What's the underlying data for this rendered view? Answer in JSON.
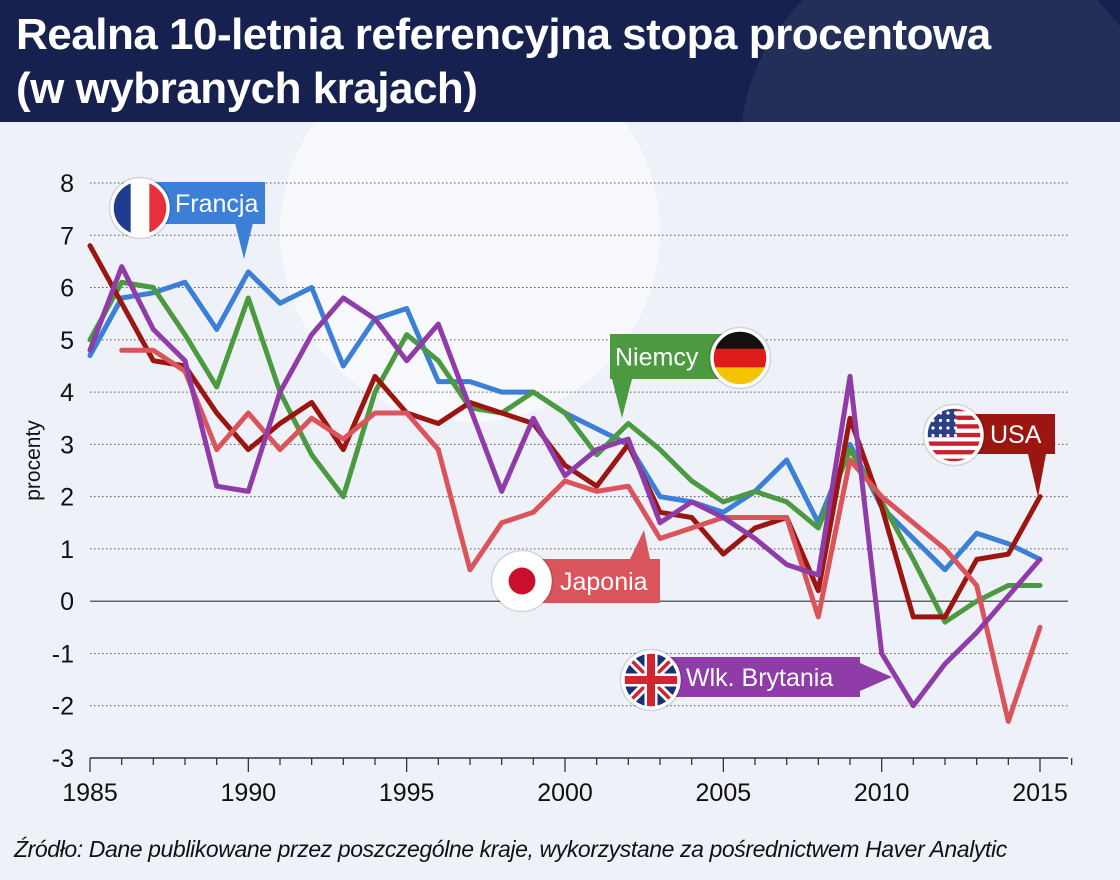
{
  "title_line1": "Realna 10-letnia referencyjna stopa procentowa",
  "title_line2": "(w wybranych krajach)",
  "source": "Źródło: Dane publikowane przez poszczególne kraje, wykorzystane za pośrednictwem Haver Analytic",
  "chart_data": {
    "type": "line",
    "ylabel": "procenty",
    "xlim": [
      1985,
      2016
    ],
    "ylim": [
      -3,
      8
    ],
    "grid": true,
    "xticks": [
      1985,
      1990,
      1995,
      2000,
      2005,
      2010,
      2015
    ],
    "yticks": [
      8,
      7,
      6,
      5,
      4,
      3,
      2,
      1,
      0,
      -1,
      -2,
      -3
    ],
    "x": [
      1985,
      1986,
      1987,
      1988,
      1989,
      1990,
      1991,
      1992,
      1993,
      1994,
      1995,
      1996,
      1997,
      1998,
      1999,
      2000,
      2001,
      2002,
      2003,
      2004,
      2005,
      2006,
      2007,
      2008,
      2009,
      2010,
      2011,
      2012,
      2013,
      2014,
      2015
    ],
    "series": [
      {
        "name": "Francja",
        "color": "#3b7fd6",
        "labelPos": "top-left",
        "flag": "france",
        "values": [
          4.7,
          5.8,
          5.9,
          6.1,
          5.2,
          6.3,
          5.7,
          6.0,
          4.5,
          5.4,
          5.6,
          4.2,
          4.2,
          4.0,
          4.0,
          3.6,
          3.3,
          3.0,
          2.0,
          1.9,
          1.7,
          2.1,
          2.7,
          1.5,
          3.0,
          1.8,
          1.2,
          0.6,
          1.3,
          1.1,
          0.8
        ]
      },
      {
        "name": "Niemcy",
        "color": "#4b9a3f",
        "labelPos": "mid",
        "flag": "germany",
        "values": [
          5.0,
          6.1,
          6.0,
          5.1,
          4.1,
          5.8,
          4.0,
          2.8,
          2.0,
          4.0,
          5.1,
          4.6,
          3.7,
          3.6,
          4.0,
          3.6,
          2.8,
          3.4,
          2.9,
          2.3,
          1.9,
          2.1,
          1.9,
          1.4,
          2.9,
          1.9,
          0.8,
          -0.4,
          0.0,
          0.3,
          0.3
        ]
      },
      {
        "name": "USA",
        "color": "#9b1611",
        "labelPos": "right",
        "flag": "usa",
        "values": [
          6.8,
          5.7,
          4.6,
          4.5,
          3.6,
          2.9,
          3.4,
          3.8,
          2.9,
          4.3,
          3.6,
          3.4,
          3.8,
          3.6,
          3.4,
          2.6,
          2.2,
          3.0,
          1.7,
          1.6,
          0.9,
          1.4,
          1.6,
          0.2,
          3.5,
          1.8,
          -0.3,
          -0.3,
          0.8,
          0.9,
          2.0
        ]
      },
      {
        "name": "Japonia",
        "color": "#d9555b",
        "labelPos": "mid",
        "flag": "japan",
        "values": [
          null,
          4.8,
          4.8,
          4.4,
          2.9,
          3.6,
          2.9,
          3.5,
          3.1,
          3.6,
          3.6,
          2.9,
          0.6,
          1.5,
          1.7,
          2.3,
          2.1,
          2.2,
          1.2,
          1.4,
          1.6,
          1.6,
          1.6,
          -0.3,
          2.7,
          2.0,
          1.5,
          1.0,
          0.3,
          -2.3,
          -0.5
        ]
      },
      {
        "name": "Wlk. Brytania",
        "color": "#8f3ca8",
        "labelPos": "bottom",
        "flag": "uk",
        "values": [
          4.8,
          6.4,
          5.2,
          4.6,
          2.2,
          2.1,
          4.0,
          5.1,
          5.8,
          5.4,
          4.6,
          5.3,
          3.7,
          2.1,
          3.5,
          2.4,
          2.9,
          3.1,
          1.5,
          1.9,
          1.6,
          1.2,
          0.7,
          0.5,
          4.3,
          -1.0,
          -2.0,
          -1.2,
          -0.6,
          0.1,
          0.8
        ]
      }
    ]
  }
}
